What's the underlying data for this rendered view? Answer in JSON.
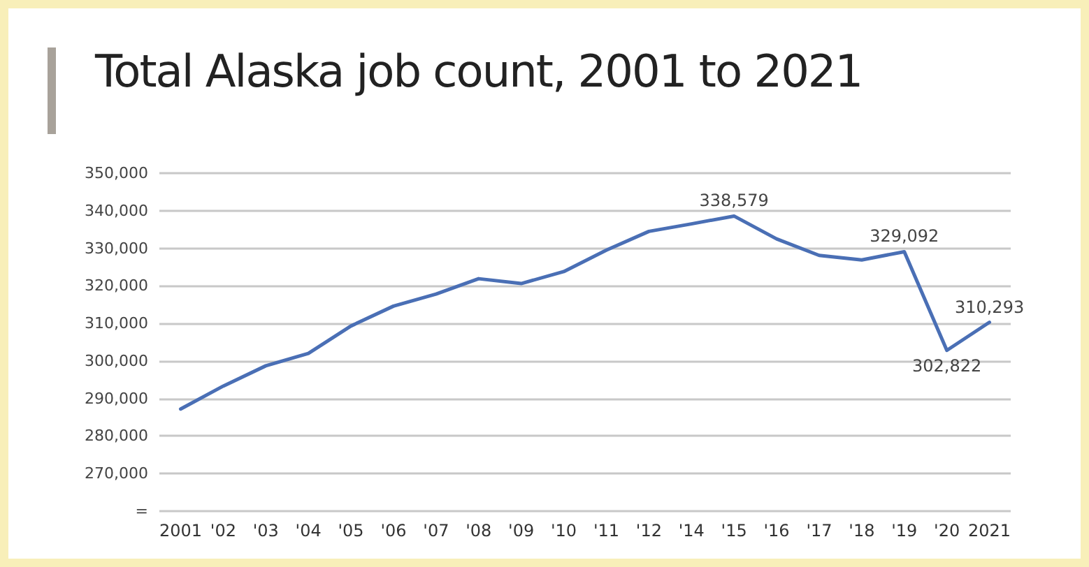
{
  "chart_data": {
    "type": "line",
    "title": "Total Alaska job count, 2001 to 2021",
    "categories": [
      "2001",
      "'02",
      "'03",
      "'04",
      "'05",
      "'06",
      "'07",
      "'08",
      "'09",
      "'10",
      "'11",
      "'12",
      "'14",
      "'15",
      "'16",
      "'17",
      "'18",
      "'19",
      "'20",
      "2021"
    ],
    "series": [
      {
        "color": "#4a6fb5",
        "values": [
          287200,
          293300,
          298700,
          302000,
          309300,
          314600,
          317800,
          321900,
          320600,
          323800,
          329500,
          334500,
          336500,
          338579,
          332500,
          328100,
          326900,
          329092,
          302822,
          310293
        ],
        "value_labels": [
          null,
          null,
          null,
          null,
          null,
          null,
          null,
          null,
          null,
          null,
          null,
          null,
          null,
          "338,579",
          null,
          null,
          null,
          "329,092",
          "302,822",
          "310,293"
        ]
      }
    ],
    "ylim": [
      260000,
      350000
    ],
    "yticks": [
      {
        "value": 260000,
        "label": "="
      },
      {
        "value": 270000,
        "label": "270,000"
      },
      {
        "value": 280000,
        "label": "280,000"
      },
      {
        "value": 290000,
        "label": "290,000"
      },
      {
        "value": 300000,
        "label": "300,000"
      },
      {
        "value": 310000,
        "label": "310,000"
      },
      {
        "value": 320000,
        "label": "320,000"
      },
      {
        "value": 330000,
        "label": "330,000"
      },
      {
        "value": 340000,
        "label": "340,000"
      },
      {
        "value": 350000,
        "label": "350,000"
      }
    ],
    "grid": "y",
    "marker": "none",
    "line_style": "solid"
  }
}
